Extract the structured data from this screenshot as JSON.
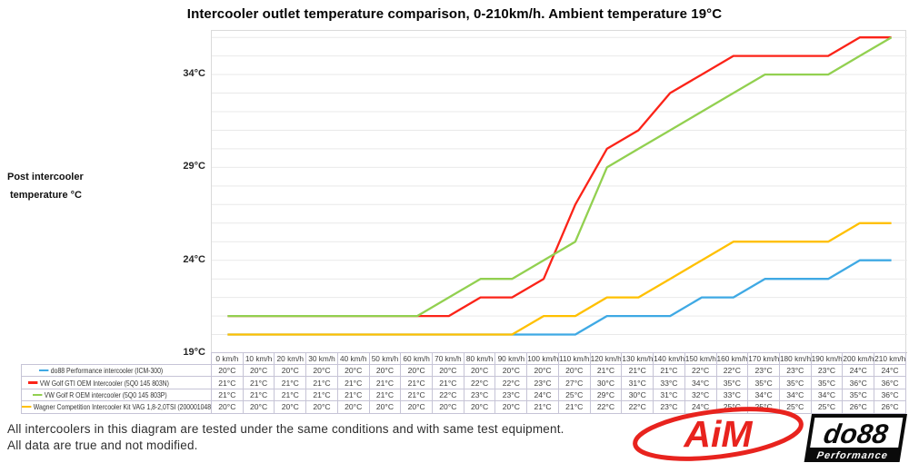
{
  "title": "Intercooler outlet temperature comparison, 0-210km/h. Ambient temperature 19°C",
  "y_axis": {
    "title_lines": [
      "Post intercooler",
      "temperature °C"
    ],
    "ticks": [
      {
        "label": "19°C",
        "value": 19
      },
      {
        "label": "24°C",
        "value": 24
      },
      {
        "label": "29°C",
        "value": 29
      },
      {
        "label": "34°C",
        "value": 34
      }
    ]
  },
  "chart_data": {
    "type": "line",
    "title": "Intercooler outlet temperature comparison, 0-210km/h. Ambient temperature 19°C",
    "xlabel": "",
    "ylabel": "Post intercooler temperature °C",
    "unit": "°C",
    "ylim": [
      19,
      36.35
    ],
    "grid": {
      "step": 1,
      "color": "#E9E9E9",
      "axis_color": "#BFBFBF"
    },
    "legend_position": "table-left",
    "categories": [
      "0 km/h",
      "10 km/h",
      "20 km/h",
      "30 km/h",
      "40 km/h",
      "50 km/h",
      "60 km/h",
      "70 km/h",
      "80 km/h",
      "90 km/h",
      "100 km/h",
      "110 km/h",
      "120 km/h",
      "130 km/h",
      "140 km/h",
      "150 km/h",
      "160 km/h",
      "170 km/h",
      "180 km/h",
      "190 km/h",
      "200 km/h",
      "210 km/h"
    ],
    "series": [
      {
        "name": "do88 Performance intercooler (ICM-300)",
        "color": "#3FA9E4",
        "values": [
          20,
          20,
          20,
          20,
          20,
          20,
          20,
          20,
          20,
          20,
          20,
          20,
          21,
          21,
          21,
          22,
          22,
          23,
          23,
          23,
          24,
          24
        ]
      },
      {
        "name": "VW Golf GTI OEM Intercooler (5Q0 145 803N)",
        "color": "#FB2318",
        "values": [
          21,
          21,
          21,
          21,
          21,
          21,
          21,
          21,
          22,
          22,
          23,
          27,
          30,
          31,
          33,
          34,
          35,
          35,
          35,
          35,
          36,
          36
        ]
      },
      {
        "name": "VW Golf R OEM intercooler (5Q0 145 803P)",
        "color": "#92D050",
        "values": [
          21,
          21,
          21,
          21,
          21,
          21,
          21,
          22,
          23,
          23,
          24,
          25,
          29,
          30,
          31,
          32,
          33,
          34,
          34,
          34,
          35,
          36
        ]
      },
      {
        "name": "Wagner Competition Intercooler Kit VAG 1,8-2,0TSI (200001048)",
        "color": "#FFC000",
        "values": [
          20,
          20,
          20,
          20,
          20,
          20,
          20,
          20,
          20,
          20,
          21,
          21,
          22,
          22,
          23,
          24,
          25,
          25,
          25,
          25,
          26,
          26
        ]
      }
    ]
  },
  "footer": {
    "line1": "All intercoolers in this diagram are tested under the same conditions and with same test equipment.",
    "line2": "All data are true and not modified."
  },
  "logos": {
    "aim": {
      "text": "AiM",
      "color": "#E8231E"
    },
    "do88": {
      "text": "do88",
      "subtext": "Performance",
      "color": "#0A0A0A"
    }
  }
}
